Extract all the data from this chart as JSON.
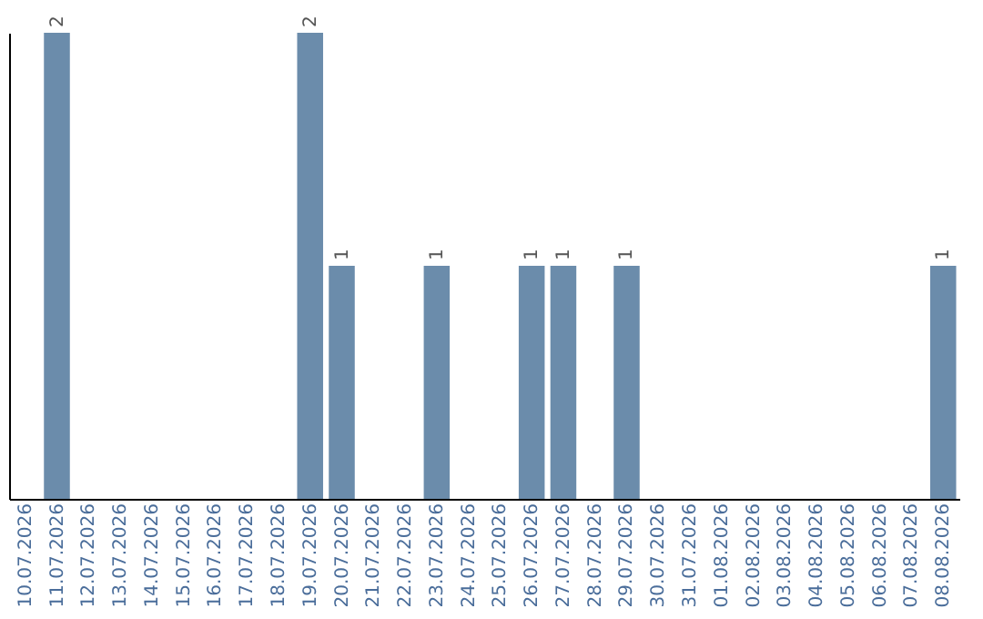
{
  "chart_data": {
    "type": "bar",
    "categories": [
      "10.07.2026",
      "11.07.2026",
      "12.07.2026",
      "13.07.2026",
      "14.07.2026",
      "15.07.2026",
      "16.07.2026",
      "17.07.2026",
      "18.07.2026",
      "19.07.2026",
      "20.07.2026",
      "21.07.2026",
      "22.07.2026",
      "23.07.2026",
      "24.07.2026",
      "25.07.2026",
      "26.07.2026",
      "27.07.2026",
      "28.07.2026",
      "29.07.2026",
      "30.07.2026",
      "31.07.2026",
      "01.08.2026",
      "02.08.2026",
      "03.08.2026",
      "04.08.2026",
      "05.08.2026",
      "06.08.2026",
      "07.08.2026",
      "08.08.2026"
    ],
    "values": [
      0,
      2,
      0,
      0,
      0,
      0,
      0,
      0,
      0,
      2,
      1,
      0,
      0,
      1,
      0,
      0,
      1,
      1,
      0,
      1,
      0,
      0,
      0,
      0,
      0,
      0,
      0,
      0,
      0,
      1
    ],
    "value_labels": [
      null,
      "2",
      null,
      null,
      null,
      null,
      null,
      null,
      null,
      "2",
      "1",
      null,
      null,
      "1",
      null,
      null,
      "1",
      "1",
      null,
      "1",
      null,
      null,
      null,
      null,
      null,
      null,
      null,
      null,
      null,
      "1"
    ],
    "color": "#6b8cab",
    "ylim": [
      0,
      2
    ],
    "tick_labels": "x",
    "grid": false
  }
}
